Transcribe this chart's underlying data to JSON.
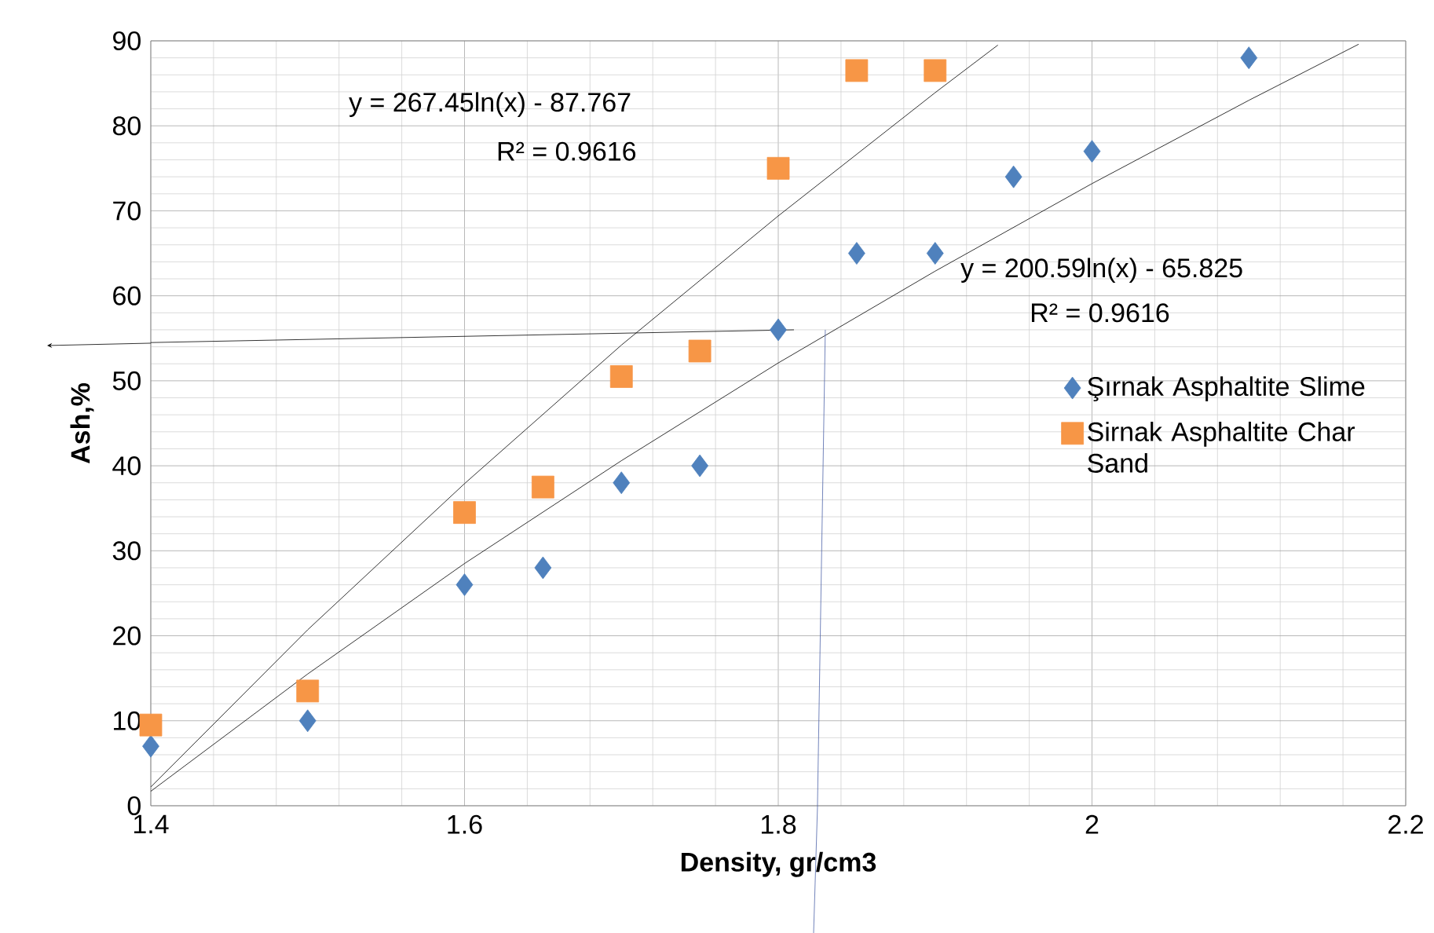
{
  "chart_data": {
    "type": "scatter",
    "xlabel": "Density, gr/cm3",
    "ylabel": "Ash,%",
    "xlim": [
      1.4,
      2.2
    ],
    "ylim": [
      0,
      90
    ],
    "xticks": [
      1.4,
      1.6,
      1.8,
      2,
      2.2
    ],
    "yticks": [
      0,
      10,
      20,
      30,
      40,
      50,
      60,
      70,
      80,
      90
    ],
    "grid": true,
    "legend": "right",
    "series": [
      {
        "name": "Şırnak Asphaltite Slime",
        "color": "#4f81bd",
        "marker": "diamond",
        "x": [
          1.4,
          1.5,
          1.6,
          1.65,
          1.7,
          1.75,
          1.8,
          1.85,
          1.9,
          1.95,
          2.0,
          2.1
        ],
        "values": [
          7,
          10,
          26,
          28,
          38,
          40,
          56,
          65,
          65,
          74,
          77,
          88
        ]
      },
      {
        "name": "Sirnak  Asphaltite Char Sand",
        "color": "#f79646",
        "marker": "square",
        "x": [
          1.4,
          1.5,
          1.6,
          1.65,
          1.7,
          1.75,
          1.8,
          1.85,
          1.9
        ],
        "values": [
          9.5,
          13.5,
          34.5,
          37.5,
          50.5,
          53.5,
          75,
          86.5,
          86.5
        ]
      },
      {
        "type": "line",
        "color": "#000000",
        "marker": "none",
        "x": [
          1.4,
          1.5,
          1.6,
          1.7,
          1.8,
          1.9,
          1.94
        ],
        "values": [
          2.2,
          20.7,
          37.9,
          54.2,
          69.4,
          83.9,
          89.5
        ]
      },
      {
        "type": "line",
        "color": "#000000",
        "marker": "none",
        "x": [
          1.4,
          1.5,
          1.6,
          1.7,
          1.8,
          1.9,
          2.0,
          2.1,
          2.17
        ],
        "values": [
          1.7,
          15.5,
          28.5,
          40.6,
          52.1,
          62.9,
          73.2,
          83.0,
          89.6
        ]
      },
      {
        "type": "line",
        "color": "#000000",
        "marker": "none",
        "x": [
          1.4,
          1.81
        ],
        "values": [
          54.5,
          56
        ]
      },
      {
        "type": "line",
        "color": "#4f64aa",
        "marker": "none",
        "x": [
          1.825,
          1.83
        ],
        "values": [
          0,
          56
        ]
      }
    ],
    "annotations": [
      "y = 267.45ln(x) - 87.767",
      "R² = 0.9616",
      "y = 200.59ln(x) - 65.825",
      "R² = 0.9616"
    ]
  }
}
